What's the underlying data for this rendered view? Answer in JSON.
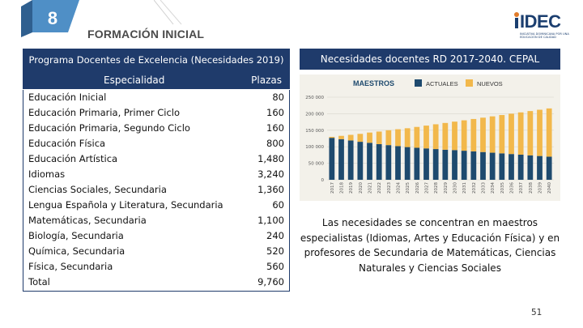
{
  "slide": {
    "number": "8",
    "section_title": "FORMACIÓN INICIAL",
    "page_number": "51"
  },
  "logo": {
    "text": "IDEC",
    "subtitle": "INICIATIVA DOMINICANA POR UNA EDUCACIÓN DE CALIDAD"
  },
  "table": {
    "title": "Programa Docentes de Excelencia (Necesidades 2019)",
    "columns": [
      "Especialidad",
      "Plazas"
    ],
    "rows": [
      {
        "especialidad": "Educación Inicial",
        "plazas": "80"
      },
      {
        "especialidad": "Educación Primaria, Primer Ciclo",
        "plazas": "160"
      },
      {
        "especialidad": "Educación Primaria, Segundo Ciclo",
        "plazas": "160"
      },
      {
        "especialidad": "Educación Física",
        "plazas": "800"
      },
      {
        "especialidad": "Educación Artística",
        "plazas": "1,480"
      },
      {
        "especialidad": "Idiomas",
        "plazas": "3,240"
      },
      {
        "especialidad": "Ciencias Sociales, Secundaria",
        "plazas": "1,360"
      },
      {
        "especialidad": "Lengua Española y Literatura, Secundaria",
        "plazas": "60"
      },
      {
        "especialidad": "Matemáticas, Secundaria",
        "plazas": "1,100"
      },
      {
        "especialidad": "Biología, Secundaria",
        "plazas": "240"
      },
      {
        "especialidad": "Química, Secundaria",
        "plazas": "520"
      },
      {
        "especialidad": "Física, Secundaria",
        "plazas": "560"
      },
      {
        "especialidad": "Total",
        "plazas": "9,760"
      }
    ]
  },
  "right_panel": {
    "title": "Necesidades docentes RD 2017-2040. CEPAL",
    "summary": "Las necesidades se concentran en maestros especialistas (Idiomas, Artes y Educación Física) y en profesores de Secundaria de Matemáticas, Ciencias Naturales y Ciencias Sociales"
  },
  "colors": {
    "header_bg": "#1f3b6b",
    "actuales": "#1e4a6e",
    "nuevos": "#f2b84b",
    "chart_bg": "#f3f1ea",
    "badge_blue": "#4f8fc6"
  },
  "chart_data": {
    "type": "bar",
    "stacked": true,
    "title": "MAESTROS",
    "legend": [
      "ACTUALES",
      "NUEVOS"
    ],
    "legend_position": "top",
    "categories": [
      "2017",
      "2018",
      "2019",
      "2020",
      "2021",
      "2022",
      "2023",
      "2024",
      "2025",
      "2026",
      "2027",
      "2028",
      "2029",
      "2030",
      "2031",
      "2032",
      "2033",
      "2034",
      "2035",
      "2036",
      "2037",
      "2038",
      "2039",
      "2040"
    ],
    "series": [
      {
        "name": "ACTUALES",
        "values": [
          127000,
          123000,
          119000,
          115000,
          112000,
          108000,
          105000,
          102000,
          99000,
          97000,
          95000,
          93000,
          91000,
          90000,
          88000,
          86000,
          84000,
          82000,
          80000,
          78000,
          76000,
          74000,
          72000,
          70000
        ]
      },
      {
        "name": "NUEVOS",
        "values": [
          3000,
          10000,
          17000,
          24000,
          31000,
          38000,
          45000,
          51000,
          57000,
          63000,
          69000,
          75000,
          81000,
          86000,
          92000,
          98000,
          104000,
          110000,
          116000,
          122000,
          128000,
          134000,
          140000,
          146000
        ]
      }
    ],
    "yticks": [
      "0",
      "50 000",
      "100 000",
      "150 000",
      "200 000",
      "250 000"
    ],
    "ylim": [
      0,
      250000
    ],
    "grid": true
  }
}
